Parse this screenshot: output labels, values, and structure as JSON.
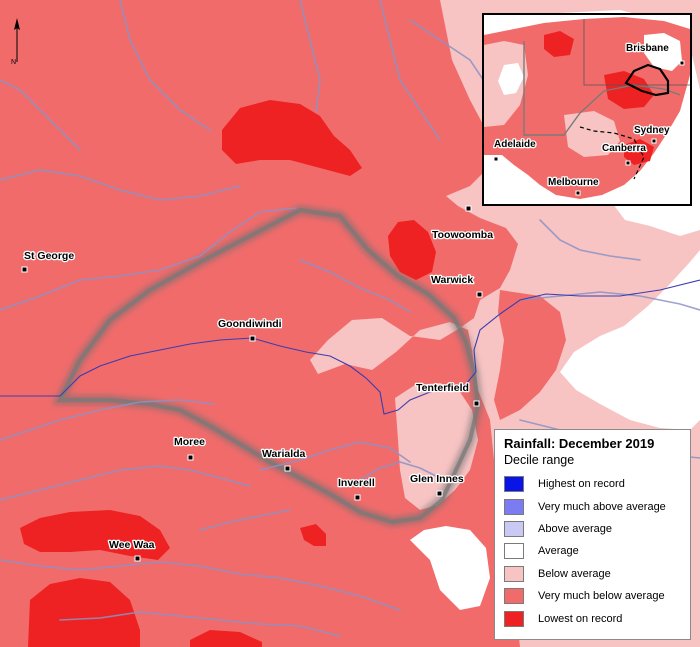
{
  "map": {
    "north_label": "N",
    "towns": [
      {
        "name": "St George"
      },
      {
        "name": "Goondiwindi"
      },
      {
        "name": "Toowoomba"
      },
      {
        "name": "Warwick"
      },
      {
        "name": "Tenterfield"
      },
      {
        "name": "Glen Innes"
      },
      {
        "name": "Inverell"
      },
      {
        "name": "Warialda"
      },
      {
        "name": "Moree"
      },
      {
        "name": "Wee Waa"
      }
    ]
  },
  "inset": {
    "cities": [
      {
        "name": "Brisbane"
      },
      {
        "name": "Sydney"
      },
      {
        "name": "Canberra"
      },
      {
        "name": "Adelaide"
      },
      {
        "name": "Melbourne"
      }
    ]
  },
  "legend": {
    "title": "Rainfall: December 2019",
    "subtitle": "Decile range",
    "items": [
      {
        "label": "Highest on record",
        "color": "#0a14e6"
      },
      {
        "label": "Very much above average",
        "color": "#7b7bf2"
      },
      {
        "label": "Above average",
        "color": "#c9c9f3"
      },
      {
        "label": "Average",
        "color": "#ffffff"
      },
      {
        "label": "Below average",
        "color": "#f7c3c3"
      },
      {
        "label": "Very much below average",
        "color": "#f26b6b"
      },
      {
        "label": "Lowest on record",
        "color": "#ee2222"
      }
    ]
  }
}
